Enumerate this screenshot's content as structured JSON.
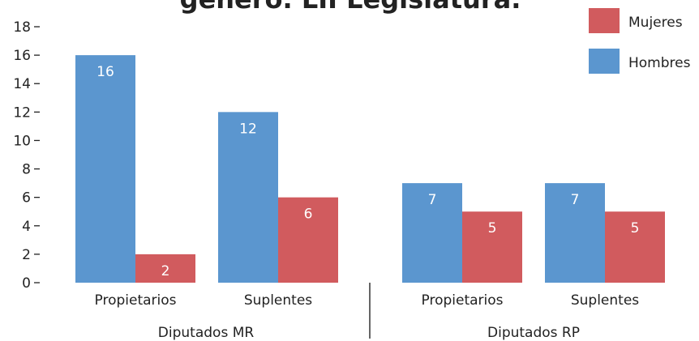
{
  "chart_data": {
    "type": "bar",
    "title": "género. LII Legislatura.",
    "categories": [
      "Propietarios",
      "Suplentes",
      "Propietarios",
      "Suplentes"
    ],
    "groups": [
      "Diputados MR",
      "Diputados RP"
    ],
    "series": [
      {
        "name": "Mujeres",
        "color": "#d15b5e",
        "values": [
          2,
          6,
          5,
          5
        ]
      },
      {
        "name": "Hombres",
        "color": "#5b96cf",
        "values": [
          16,
          12,
          7,
          7
        ]
      }
    ],
    "ylim": [
      0,
      18
    ],
    "yticks": [
      0,
      2,
      4,
      6,
      8,
      10,
      12,
      14,
      16,
      18
    ],
    "grid": false
  }
}
